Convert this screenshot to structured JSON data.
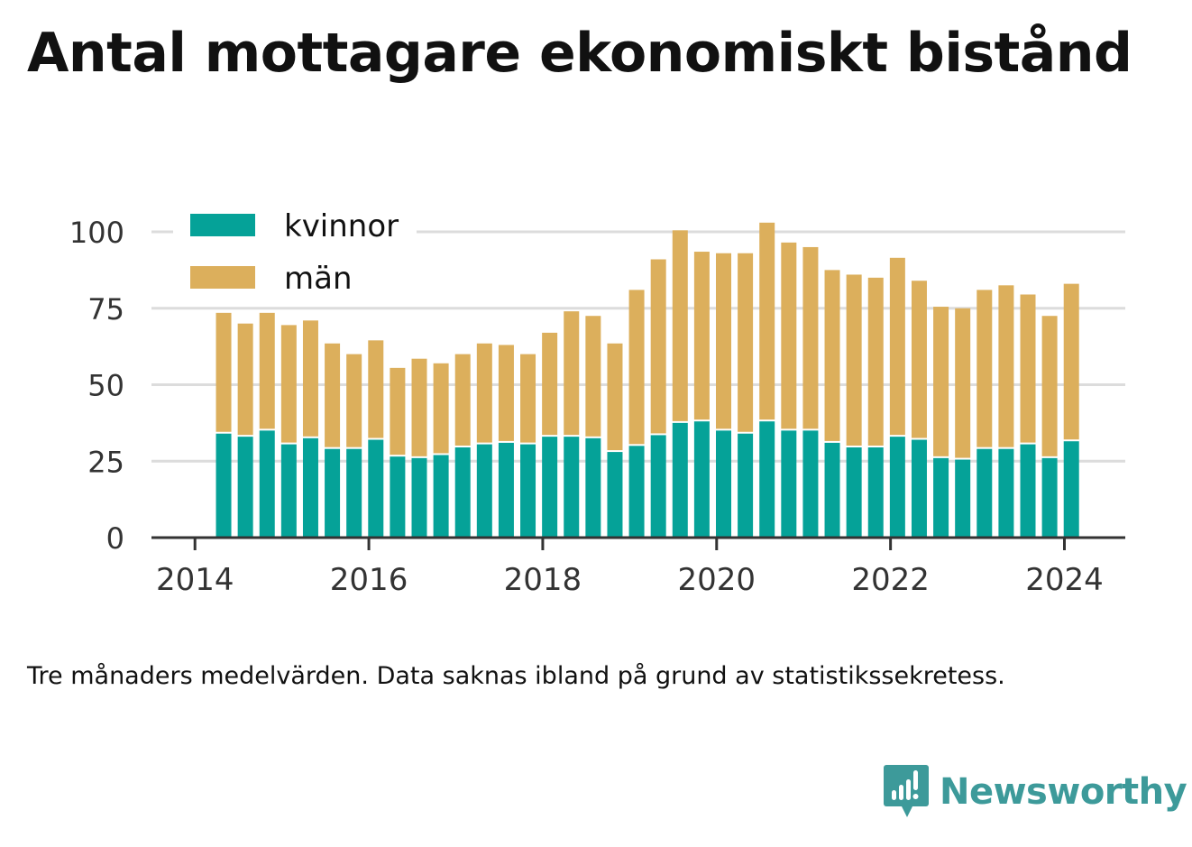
{
  "title": "Antal mottagare ekonomiskt bistånd",
  "note": "Tre månaders medelvärden. Data saknas ibland på grund av statistikssekretess.",
  "brand": {
    "name": "Newsworthy",
    "color": "#3d9a9a"
  },
  "chart_data": {
    "type": "bar",
    "stacked": true,
    "grid": true,
    "legend_position": "top-left",
    "ylim": [
      0,
      100
    ],
    "yticks": [
      0,
      25,
      50,
      75,
      100
    ],
    "xticks": [
      2014,
      2016,
      2018,
      2020,
      2022,
      2024
    ],
    "xlim": [
      2013.5,
      2024.7
    ],
    "x": [
      2014.33,
      2014.58,
      2014.83,
      2015.08,
      2015.33,
      2015.58,
      2015.83,
      2016.08,
      2016.33,
      2016.58,
      2016.83,
      2017.08,
      2017.33,
      2017.58,
      2017.83,
      2018.08,
      2018.33,
      2018.58,
      2018.83,
      2019.08,
      2019.33,
      2019.58,
      2019.83,
      2020.08,
      2020.33,
      2020.58,
      2020.83,
      2021.08,
      2021.33,
      2021.58,
      2021.83,
      2022.08,
      2022.33,
      2022.58,
      2022.83,
      2023.08,
      2023.33,
      2023.58,
      2023.83,
      2024.08
    ],
    "series": [
      {
        "name": "kvinnor",
        "color": "#05a298",
        "values": [
          34,
          33,
          35,
          30.5,
          32.5,
          29,
          29,
          32,
          26.5,
          26,
          27,
          29.5,
          30.5,
          31,
          30.5,
          33,
          33,
          32.5,
          28,
          30,
          33.5,
          37.5,
          38,
          35,
          34,
          38,
          35,
          35,
          31,
          29.5,
          29.5,
          33,
          32,
          26,
          25.5,
          29,
          29,
          30.5,
          26,
          31.5
        ]
      },
      {
        "name": "män",
        "color": "#dcaf5c",
        "values": [
          39.5,
          37,
          38.5,
          39,
          38.5,
          34.5,
          31,
          32.5,
          29,
          32.5,
          30,
          30.5,
          33,
          32,
          29.5,
          34,
          41,
          40,
          35.5,
          51,
          57.5,
          63,
          55.5,
          58,
          59,
          65,
          61.5,
          60,
          56.5,
          56.5,
          55.5,
          58.5,
          52,
          49.5,
          49.5,
          52,
          53.5,
          49,
          46.5,
          51.5
        ]
      }
    ]
  }
}
